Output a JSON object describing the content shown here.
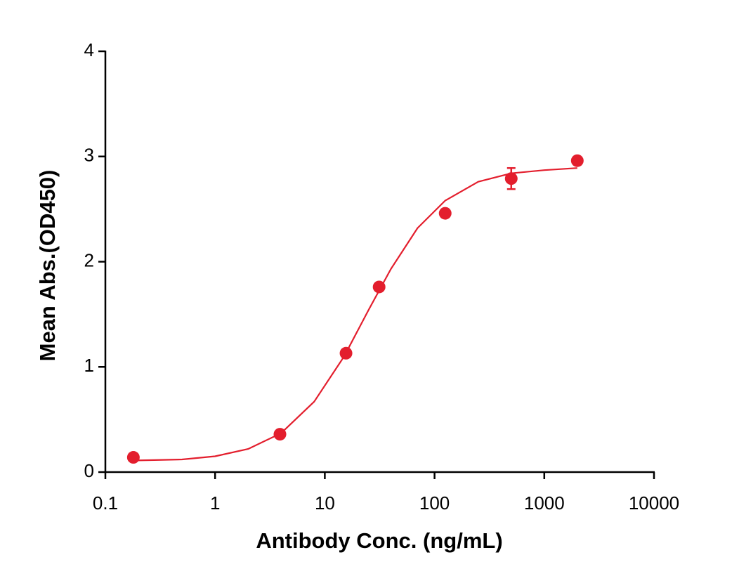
{
  "chart_data": {
    "type": "scatter",
    "xlabel": "Antibody Conc. (ng/mL)",
    "ylabel": "Mean Abs.(OD450)",
    "xscale": "log",
    "xlim": [
      0.1,
      10000
    ],
    "xticks": [
      0.1,
      1,
      10,
      100,
      1000,
      10000
    ],
    "ylim": [
      0,
      4
    ],
    "yticks": [
      0,
      1,
      2,
      3,
      4
    ],
    "grid": false,
    "color": "#e31e2d",
    "points": {
      "x": [
        0.18,
        3.9,
        15.6,
        31.25,
        125,
        500,
        2000
      ],
      "values": [
        0.14,
        0.36,
        1.13,
        1.76,
        2.46,
        2.79,
        2.96
      ],
      "errors": [
        null,
        null,
        null,
        null,
        null,
        0.1,
        null
      ]
    },
    "curve": {
      "x": [
        0.18,
        0.5,
        1,
        2,
        4,
        8,
        15,
        25,
        40,
        70,
        125,
        250,
        500,
        1000,
        2000
      ],
      "values": [
        0.11,
        0.12,
        0.15,
        0.22,
        0.37,
        0.67,
        1.1,
        1.54,
        1.93,
        2.32,
        2.58,
        2.76,
        2.84,
        2.87,
        2.89
      ]
    }
  }
}
